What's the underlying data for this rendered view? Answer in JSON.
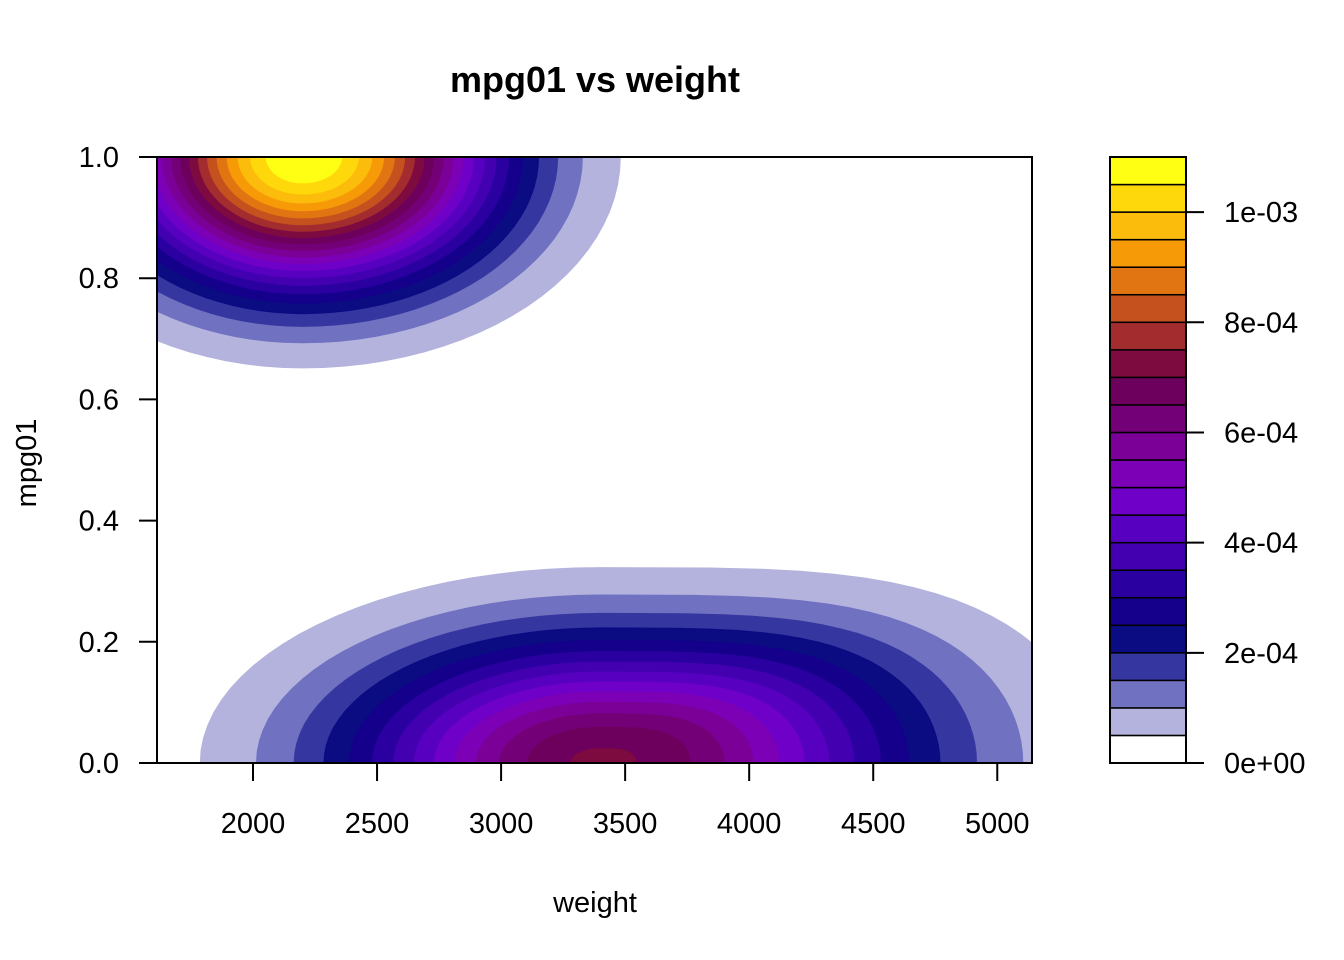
{
  "chart_data": {
    "type": "heatmap",
    "subtype": "filled-contour",
    "title": "mpg01 vs weight",
    "xlabel": "weight",
    "ylabel": "mpg01",
    "xlim": [
      1613,
      5140
    ],
    "ylim": [
      0,
      1
    ],
    "x_ticks": [
      "2000",
      "2500",
      "3000",
      "3500",
      "4000",
      "4500",
      "5000"
    ],
    "y_ticks": [
      "0.0",
      "0.2",
      "0.4",
      "0.6",
      "0.8",
      "1.0"
    ],
    "grid": false,
    "density_peaks": [
      {
        "x": 2200,
        "y": 1.0,
        "value": 0.0011
      },
      {
        "x": 3400,
        "y": 0.0,
        "value": 0.00071
      }
    ],
    "legend": {
      "placement": "right",
      "range": [
        0,
        0.0011
      ],
      "levels": 22,
      "tick_labels": [
        "0e+00",
        "2e-04",
        "4e-04",
        "6e-04",
        "8e-04",
        "1e-03"
      ],
      "tick_values": [
        0,
        0.0002,
        0.0004,
        0.0006,
        0.0008,
        0.001
      ],
      "colors": [
        "#ffffff",
        "#b3b3de",
        "#7171c1",
        "#3636a1",
        "#0b0b82",
        "#15008c",
        "#2a00a0",
        "#4200b1",
        "#5800c0",
        "#6e00c8",
        "#7c00b6",
        "#7a0097",
        "#740077",
        "#6c005c",
        "#7d0b40",
        "#a32c2e",
        "#c5511f",
        "#e17512",
        "#f79a07",
        "#fcbc0c",
        "#ffd80b",
        "#ffff14"
      ]
    }
  }
}
